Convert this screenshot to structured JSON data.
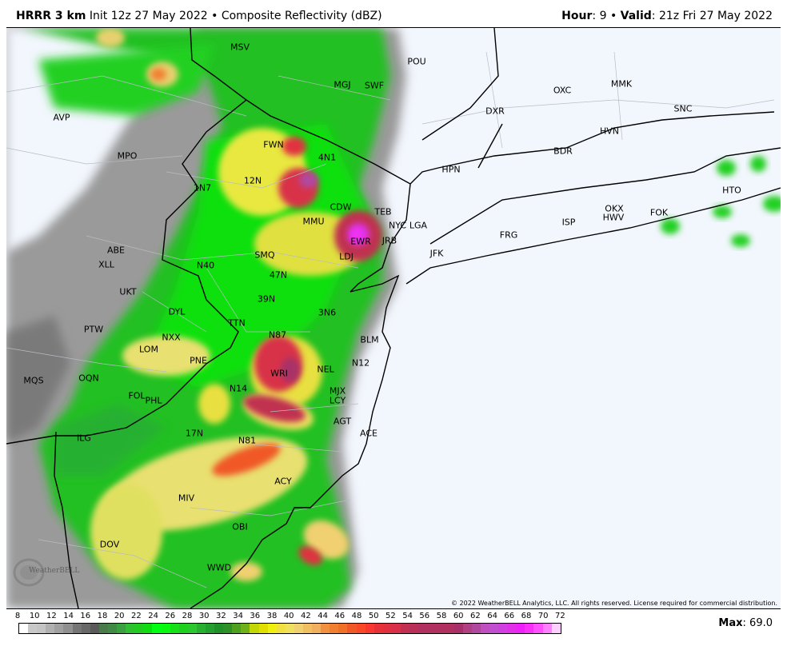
{
  "header": {
    "model": "HRRR 3 km",
    "init": "Init 12z 27 May 2022",
    "separator": "•",
    "product": "Composite Reflectivity (dBZ)",
    "hour_label": "Hour",
    "hour": "9",
    "valid_label": "Valid",
    "valid": "21z Fri 27 May 2022"
  },
  "map": {
    "background": "#f2f6fd",
    "stations": [
      "MSV",
      "POU",
      "MGJ",
      "SWF",
      "OXC",
      "MMK",
      "SNC",
      "AVP",
      "DXR",
      "HVN",
      "MPO",
      "FWN",
      "4N1",
      "BDR",
      "HPN",
      "1N7",
      "12N",
      "HTO",
      "CDW",
      "TEB",
      "OKX",
      "HWV",
      "FOK",
      "MMU",
      "NYC",
      "LGA",
      "ISP",
      "EWR",
      "JRB",
      "FRG",
      "ABE",
      "SMQ",
      "N40",
      "LDJ",
      "JFK",
      "XLL",
      "47N",
      "UKT",
      "39N",
      "DYL",
      "3N6",
      "TTN",
      "PTW",
      "N87",
      "NXX",
      "BLM",
      "LOM",
      "PNE",
      "N12",
      "NEL",
      "WRI",
      "MQS",
      "OQN",
      "N14",
      "MJX",
      "FOL",
      "PHL",
      "LCY",
      "AGT",
      "17N",
      "ACE",
      "ILG",
      "N81",
      "ACY",
      "MIV",
      "OBI",
      "DOV",
      "WWD"
    ],
    "copyright": "© 2022 WeatherBELL Analytics, LLC. All rights reserved. License required for commercial distribution.",
    "logo_text": "WeatherBELL"
  },
  "legend": {
    "unit": "dBZ",
    "ticks": [
      "8",
      "10",
      "12",
      "14",
      "16",
      "18",
      "20",
      "22",
      "24",
      "26",
      "28",
      "30",
      "32",
      "34",
      "36",
      "38",
      "40",
      "42",
      "44",
      "46",
      "48",
      "50",
      "52",
      "54",
      "56",
      "58",
      "60",
      "62",
      "64",
      "66",
      "68",
      "70",
      "72"
    ],
    "colors": [
      "#ffffff",
      "#c8c8c8",
      "#c4c4c4",
      "#b0b0b0",
      "#a0a0a0",
      "#909090",
      "#757575",
      "#686868",
      "#5a5a5a",
      "#4a7a4a",
      "#3f8a45",
      "#3aa040",
      "#2ec030",
      "#20cc20",
      "#10dd10",
      "#00ff10",
      "#08f810",
      "#18e018",
      "#20d020",
      "#2cc830",
      "#28b030",
      "#24a030",
      "#209028",
      "#309028",
      "#50a020",
      "#70b018",
      "#c0d808",
      "#e0e000",
      "#f0f010",
      "#f0e040",
      "#f0e060",
      "#f0d070",
      "#f0c060",
      "#f0b060",
      "#f09040",
      "#f08030",
      "#f07028",
      "#f05828",
      "#f84828",
      "#f83830",
      "#e83038",
      "#e03040",
      "#d83048",
      "#c03050",
      "#b83058",
      "#b03060",
      "#b03060",
      "#b03060",
      "#b03060",
      "#a83068",
      "#b04080",
      "#b048a0",
      "#c050c0",
      "#c050d0",
      "#d040e0",
      "#e030e8",
      "#f020f8",
      "#f830f8",
      "#ff50ff",
      "#ff80ff",
      "#ffd0ff"
    ],
    "max_label": "Max",
    "max_value": "69.0"
  }
}
